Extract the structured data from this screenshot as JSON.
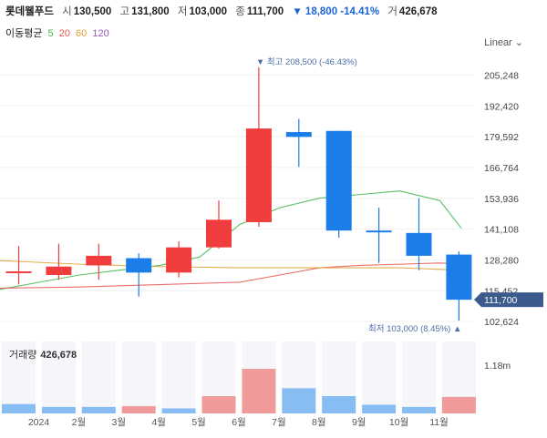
{
  "header": {
    "name": "롯데웰푸드",
    "open_label": "시",
    "open": "130,500",
    "high_label": "고",
    "high": "131,800",
    "low_label": "저",
    "low": "103,000",
    "close_label": "종",
    "close": "111,700",
    "change": "▼ 18,800 -14.41%",
    "volume_label": "거",
    "volume": "426,678"
  },
  "ma_legend": {
    "title": "이동평균",
    "items": [
      {
        "label": "5",
        "color": "#3cb54a"
      },
      {
        "label": "20",
        "color": "#e8534f"
      },
      {
        "label": "60",
        "color": "#e0a030"
      },
      {
        "label": "120",
        "color": "#9b59b6"
      }
    ]
  },
  "scale": "Linear",
  "volume_panel": {
    "title": "거래량",
    "value": "426,678",
    "axis_tick": "1.18m"
  },
  "colors": {
    "up": "#ef3d3d",
    "down": "#1a7de8",
    "vol_up": "#f09a9a",
    "vol_down": "#87bdf3",
    "slot": "#f5f6fa"
  },
  "chart_data": {
    "type": "candlestick",
    "y_ticks": [
      "205,248",
      "192,420",
      "179,592",
      "166,764",
      "153,936",
      "141,108",
      "128,280",
      "115,452",
      "102,624"
    ],
    "y_tick_values": [
      205248,
      192420,
      179592,
      166764,
      153936,
      141108,
      128280,
      115452,
      102624
    ],
    "ylim": [
      100000,
      213000
    ],
    "x_labels": [
      "2024",
      "2월",
      "3월",
      "4월",
      "5월",
      "6월",
      "7월",
      "8월",
      "9월",
      "10월",
      "11월"
    ],
    "candles": [
      {
        "open": 123000,
        "high": 134000,
        "low": 118000,
        "close": 123500
      },
      {
        "open": 122000,
        "high": 135000,
        "low": 120000,
        "close": 125500
      },
      {
        "open": 126000,
        "high": 135000,
        "low": 120000,
        "close": 130000
      },
      {
        "open": 129000,
        "high": 131000,
        "low": 113000,
        "close": 123000
      },
      {
        "open": 123000,
        "high": 136000,
        "low": 121000,
        "close": 133500
      },
      {
        "open": 133500,
        "high": 153000,
        "low": 133000,
        "close": 145000
      },
      {
        "open": 144000,
        "high": 208500,
        "low": 142000,
        "close": 183000
      },
      {
        "open": 181500,
        "high": 187000,
        "low": 167000,
        "close": 179500
      },
      {
        "open": 182000,
        "high": 182000,
        "low": 137500,
        "close": 140500
      },
      {
        "open": 140500,
        "high": 150000,
        "low": 127000,
        "close": 140000
      },
      {
        "open": 139500,
        "high": 154000,
        "low": 124000,
        "close": 130000
      },
      {
        "open": 130500,
        "high": 131800,
        "low": 103000,
        "close": 111700
      }
    ],
    "ma_lines": [
      {
        "name": "5",
        "color": "#3cb54a",
        "points": [
          [
            0,
            116000
          ],
          [
            1,
            119000
          ],
          [
            2,
            122000
          ],
          [
            3,
            124000
          ],
          [
            4,
            126000
          ],
          [
            5,
            129500
          ],
          [
            6,
            143000
          ],
          [
            7,
            150000
          ],
          [
            8,
            154000
          ],
          [
            9,
            155500
          ],
          [
            10,
            157000
          ],
          [
            11,
            153000
          ],
          [
            12,
            141500
          ]
        ]
      },
      {
        "name": "20",
        "color": "#e8534f",
        "points": [
          [
            0,
            116500
          ],
          [
            2,
            117000
          ],
          [
            4,
            118000
          ],
          [
            6,
            119000
          ],
          [
            7,
            122000
          ],
          [
            8,
            125000
          ],
          [
            9,
            126000
          ],
          [
            10,
            126500
          ],
          [
            11,
            127000
          ],
          [
            12,
            126500
          ]
        ]
      },
      {
        "name": "60",
        "color": "#e0a030",
        "points": [
          [
            0,
            128000
          ],
          [
            2,
            126500
          ],
          [
            4,
            125500
          ],
          [
            6,
            125000
          ],
          [
            8,
            125000
          ],
          [
            10,
            125000
          ],
          [
            12,
            124000
          ]
        ]
      }
    ],
    "last_price_label": "111,700",
    "high_annotation": "▼ 최고 208,500 (-46.43%)",
    "low_annotation": "최저 103,000 (8.45%) ▲",
    "volume": [
      {
        "value": 0.13,
        "up": false
      },
      {
        "value": 0.09,
        "up": false
      },
      {
        "value": 0.09,
        "up": false
      },
      {
        "value": 0.1,
        "up": true
      },
      {
        "value": 0.07,
        "up": false
      },
      {
        "value": 0.24,
        "up": true
      },
      {
        "value": 0.62,
        "up": true
      },
      {
        "value": 0.35,
        "up": false
      },
      {
        "value": 0.24,
        "up": false
      },
      {
        "value": 0.12,
        "up": false
      },
      {
        "value": 0.09,
        "up": false
      },
      {
        "value": 0.23,
        "up": true
      }
    ]
  }
}
